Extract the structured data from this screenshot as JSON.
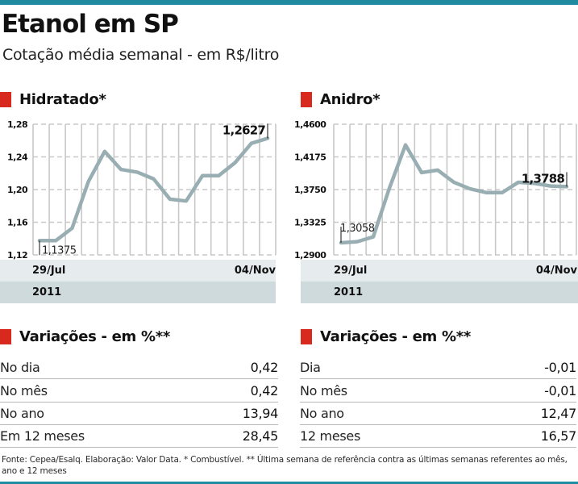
{
  "header": {
    "title": "Etanol em SP",
    "subtitle": "Cotação média semanal - em R$/litro"
  },
  "colors": {
    "accent_bar": "#1f8aa0",
    "section_marker": "#d8291e",
    "line": "#98aeb2",
    "grid": "#c8c8c8",
    "band_light": "#e6ecee",
    "band_dark": "#cfdadd"
  },
  "chart_data": [
    {
      "type": "line",
      "title": "Hidratado*",
      "xlabel": "",
      "ylabel": "",
      "x_start_label": "29/Jul",
      "x_end_label": "04/Nov",
      "year_label": "2011",
      "yticks": [
        "1,12",
        "1,16",
        "1,20",
        "1,24",
        "1,28"
      ],
      "ylim": [
        1.12,
        1.28
      ],
      "grid": true,
      "series": [
        {
          "name": "Hidratado",
          "values": [
            1.1375,
            1.1375,
            1.1527,
            1.2098,
            1.2467,
            1.2246,
            1.2213,
            1.2131,
            1.1883,
            1.186,
            1.217,
            1.217,
            1.2329,
            1.2566,
            1.2627
          ]
        }
      ],
      "annotations": {
        "start_value": "1,1375",
        "end_value": "1,2627"
      }
    },
    {
      "type": "line",
      "title": "Anidro*",
      "xlabel": "",
      "ylabel": "",
      "x_start_label": "29/Jul",
      "x_end_label": "04/Nov",
      "year_label": "2011",
      "yticks": [
        "1,2900",
        "1,3325",
        "1,3750",
        "1,4175",
        "1,4600"
      ],
      "ylim": [
        1.29,
        1.46
      ],
      "grid": true,
      "series": [
        {
          "name": "Anidro",
          "values": [
            1.3058,
            1.3072,
            1.3135,
            1.3768,
            1.433,
            1.3971,
            1.4003,
            1.3845,
            1.376,
            1.3711,
            1.3711,
            1.3845,
            1.3831,
            1.3796,
            1.3788
          ]
        }
      ],
      "annotations": {
        "start_value": "1,3058",
        "end_value": "1,3788"
      }
    }
  ],
  "variacoes_left": {
    "title": "Variações - em %**",
    "rows": [
      {
        "label": "No dia",
        "value": "0,42"
      },
      {
        "label": "No mês",
        "value": "0,42"
      },
      {
        "label": "No ano",
        "value": "13,94"
      },
      {
        "label": "Em 12 meses",
        "value": "28,45"
      }
    ]
  },
  "variacoes_right": {
    "title": "Variações - em %**",
    "rows": [
      {
        "label": "Dia",
        "value": "-0,01"
      },
      {
        "label": "No mês",
        "value": "-0,01"
      },
      {
        "label": "No ano",
        "value": "12,47"
      },
      {
        "label": "12 meses",
        "value": "16,57"
      }
    ]
  },
  "footer": {
    "text": "Fonte: Cepea/Esalq. Elaboração: Valor Data. * Combustível. ** Última semana de referência contra as últimas semanas referentes ao mês, ano e 12 meses"
  }
}
